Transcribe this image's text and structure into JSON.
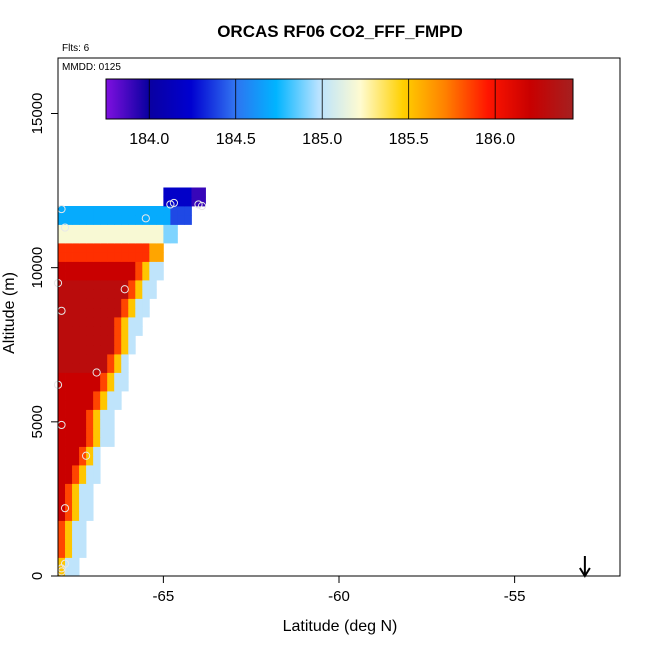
{
  "chart_data": {
    "type": "heatmap",
    "title": "ORCAS RF06 CO2_FFF_FMPD",
    "xlabel": "Latitude (deg N)",
    "ylabel": "Altitude (m)",
    "xlim": [
      -68,
      -52
    ],
    "ylim": [
      0,
      16800
    ],
    "x_ticks": [
      -65,
      -60,
      -55
    ],
    "x_tick_labels": [
      "-65",
      "-60",
      "-55"
    ],
    "y_ticks": [
      0,
      5000,
      10000,
      15000
    ],
    "y_tick_labels": [
      "0",
      "5000",
      "10000",
      "15000"
    ],
    "annotations": [
      "Flts: 6",
      "MMDD: 0125"
    ],
    "colorbar": {
      "min": 183.75,
      "max": 186.45,
      "ticks": [
        184.0,
        184.5,
        185.0,
        185.5,
        186.0
      ],
      "tick_labels": [
        "184.0",
        "184.5",
        "185.0",
        "185.5",
        "186.0"
      ],
      "colors": [
        "#7f10e0",
        "#0a00a0",
        "#0000d0",
        "#3070f0",
        "#00b4ff",
        "#b8e2ff",
        "#fffbd0",
        "#ffd000",
        "#ff8000",
        "#ff1500",
        "#c80000",
        "#a52020"
      ]
    },
    "grid_cells": {
      "lat_step": 0.2,
      "alt_step": 300,
      "rows": [
        {
          "alt": 0,
          "lat_min": -68.0,
          "lat_max": -67.4,
          "value": 186.2
        },
        {
          "alt": 600,
          "lat_min": -68.0,
          "lat_max": -67.3,
          "value": 186.2
        },
        {
          "alt": 1200,
          "lat_min": -68.0,
          "lat_max": -67.3,
          "value": 186.2
        },
        {
          "alt": 1800,
          "lat_min": -68.0,
          "lat_max": -67.1,
          "value": 186.2
        },
        {
          "alt": 2400,
          "lat_min": -68.0,
          "lat_max": -67.0,
          "value": 186.2
        },
        {
          "alt": 3000,
          "lat_min": -68.0,
          "lat_max": -66.8,
          "value": 186.2
        },
        {
          "alt": 3600,
          "lat_min": -68.0,
          "lat_max": -66.7,
          "value": 186.2
        },
        {
          "alt": 4200,
          "lat_min": -68.0,
          "lat_max": -66.5,
          "value": 186.2
        },
        {
          "alt": 4800,
          "lat_min": -68.0,
          "lat_max": -66.4,
          "value": 186.2
        },
        {
          "alt": 5400,
          "lat_min": -68.0,
          "lat_max": -66.2,
          "value": 186.2
        },
        {
          "alt": 6000,
          "lat_min": -68.0,
          "lat_max": -66.1,
          "value": 186.2
        },
        {
          "alt": 6600,
          "lat_min": -68.0,
          "lat_max": -65.9,
          "value": 186.3
        },
        {
          "alt": 7200,
          "lat_min": -68.0,
          "lat_max": -65.7,
          "value": 186.3
        },
        {
          "alt": 7800,
          "lat_min": -68.0,
          "lat_max": -65.6,
          "value": 186.3
        },
        {
          "alt": 8400,
          "lat_min": -68.0,
          "lat_max": -65.4,
          "value": 186.3
        },
        {
          "alt": 9000,
          "lat_min": -68.0,
          "lat_max": -65.3,
          "value": 186.3
        },
        {
          "alt": 9600,
          "lat_min": -68.0,
          "lat_max": -65.1,
          "value": 186.2
        },
        {
          "alt": 10200,
          "lat_min": -68.0,
          "lat_max": -64.9,
          "value": 185.6
        },
        {
          "alt": 10800,
          "lat_min": -68.0,
          "lat_max": -64.6,
          "value": 184.9
        },
        {
          "alt": 11400,
          "lat_min": -68.0,
          "lat_max": -64.3,
          "value": 184.4
        },
        {
          "alt": 12000,
          "lat_min": -65.0,
          "lat_max": -63.8,
          "value": 183.9
        }
      ]
    },
    "observation_points": [
      {
        "lat": -67.9,
        "alt": 11900
      },
      {
        "lat": -67.8,
        "alt": 11300
      },
      {
        "lat": -65.5,
        "alt": 11600
      },
      {
        "lat": -64.8,
        "alt": 12050
      },
      {
        "lat": -64.7,
        "alt": 12100
      },
      {
        "lat": -64.0,
        "alt": 12050
      },
      {
        "lat": -63.9,
        "alt": 12000
      },
      {
        "lat": -68.0,
        "alt": 9500
      },
      {
        "lat": -67.9,
        "alt": 8600
      },
      {
        "lat": -66.1,
        "alt": 9300
      },
      {
        "lat": -68.0,
        "alt": 6200
      },
      {
        "lat": -66.9,
        "alt": 6600
      },
      {
        "lat": -67.9,
        "alt": 4900
      },
      {
        "lat": -67.2,
        "alt": 3900
      },
      {
        "lat": -67.8,
        "alt": 2200
      },
      {
        "lat": -67.8,
        "alt": 400
      },
      {
        "lat": -67.9,
        "alt": 250
      },
      {
        "lat": -67.9,
        "alt": 150
      }
    ],
    "arrow_marker": {
      "lat": -53.0
    }
  }
}
